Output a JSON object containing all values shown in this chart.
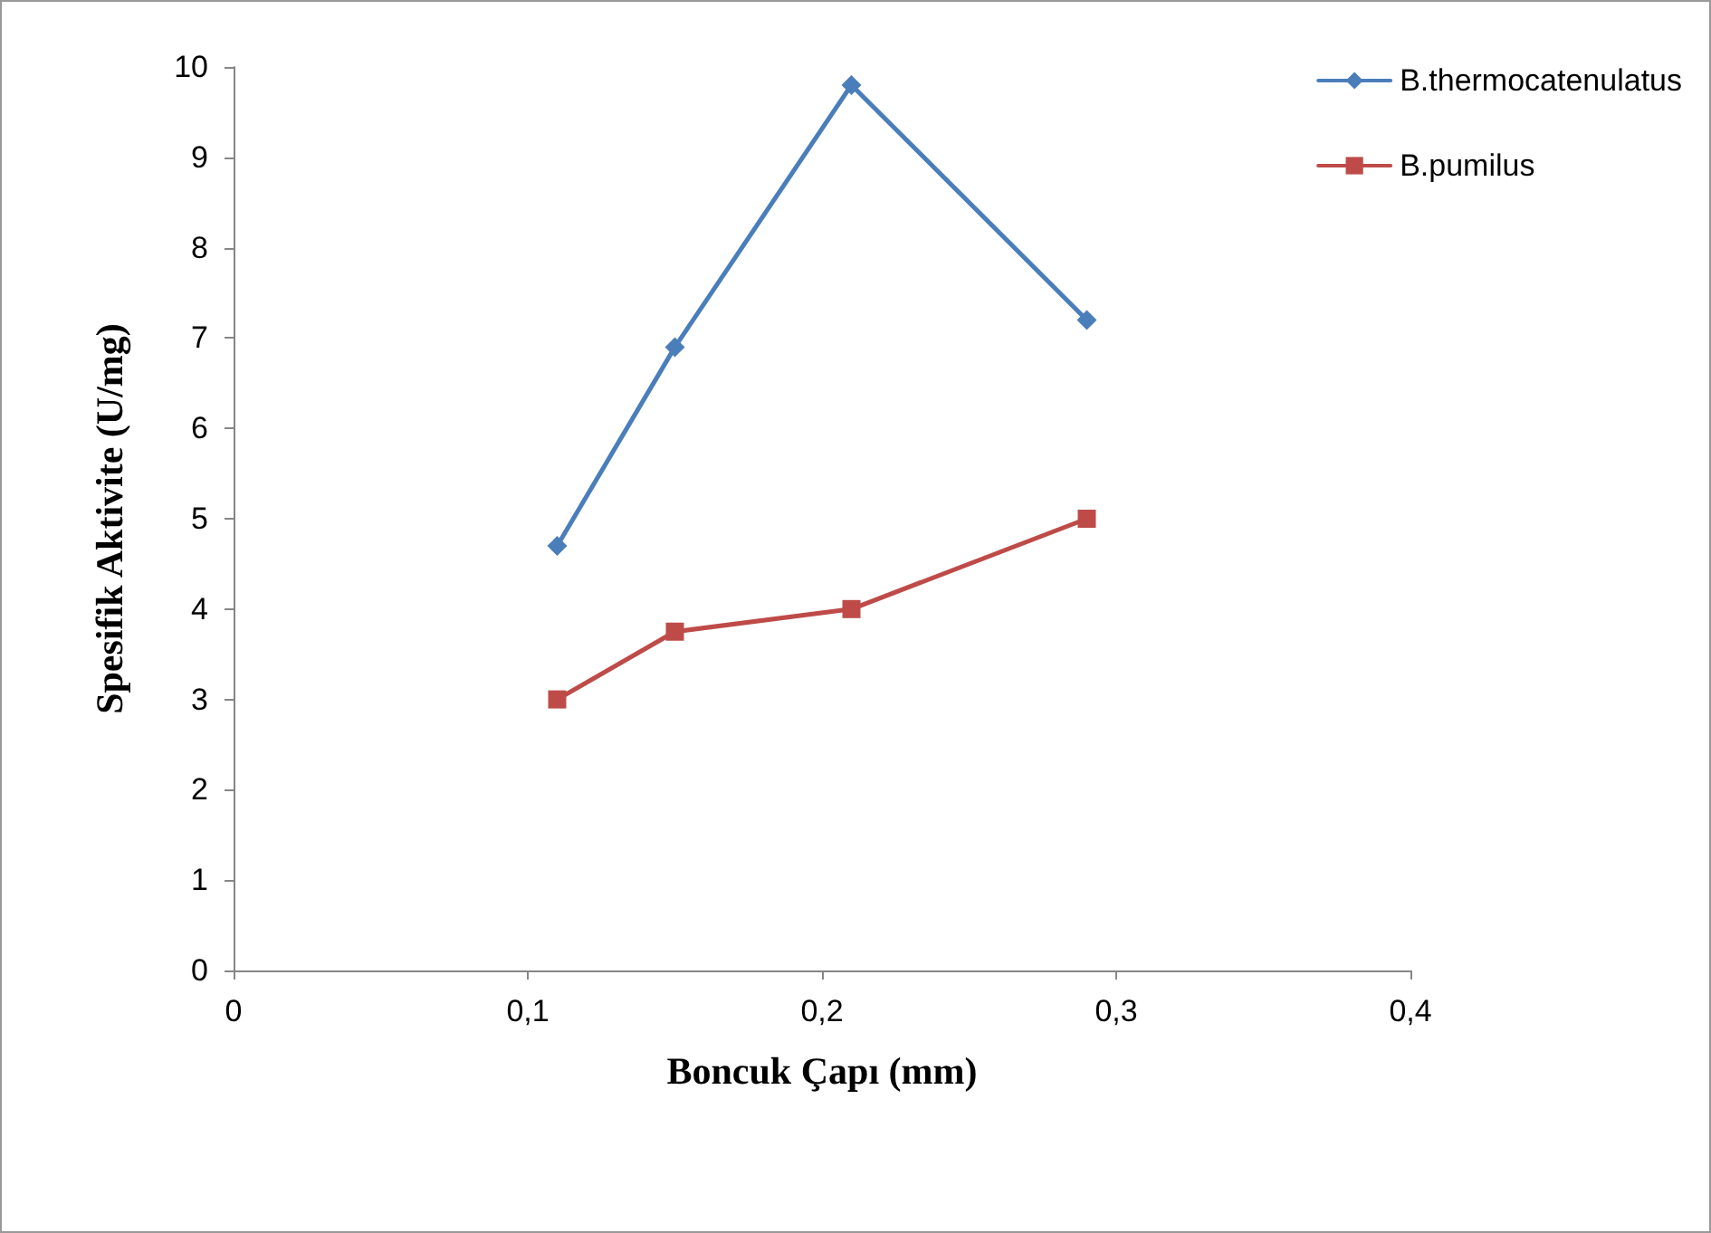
{
  "chart_data": {
    "type": "line",
    "xlabel": "Boncuk Çapı (mm)",
    "ylabel": "Spesifik Aktivite (U/mg)",
    "series": [
      {
        "name": "B.thermocatenulatus",
        "color": "#4a7ebb",
        "marker": "diamond",
        "x": [
          0.11,
          0.15,
          0.21,
          0.29
        ],
        "values": [
          4.7,
          6.9,
          9.8,
          7.2
        ]
      },
      {
        "name": "B.pumilus",
        "color": "#be4b48",
        "marker": "square",
        "x": [
          0.11,
          0.15,
          0.21,
          0.29
        ],
        "values": [
          3.0,
          3.75,
          4.0,
          5.0
        ]
      }
    ],
    "xlim": [
      0,
      0.4
    ],
    "xticks": [
      {
        "value": 0,
        "label": "0"
      },
      {
        "value": 0.1,
        "label": "0,1"
      },
      {
        "value": 0.2,
        "label": "0,2"
      },
      {
        "value": 0.3,
        "label": "0,3"
      },
      {
        "value": 0.4,
        "label": "0,4"
      }
    ],
    "ylim": [
      0,
      10
    ],
    "yticks": [
      0,
      1,
      2,
      3,
      4,
      5,
      6,
      7,
      8,
      9,
      10
    ],
    "grid": false,
    "legend": "top right",
    "line_style": "solid"
  }
}
